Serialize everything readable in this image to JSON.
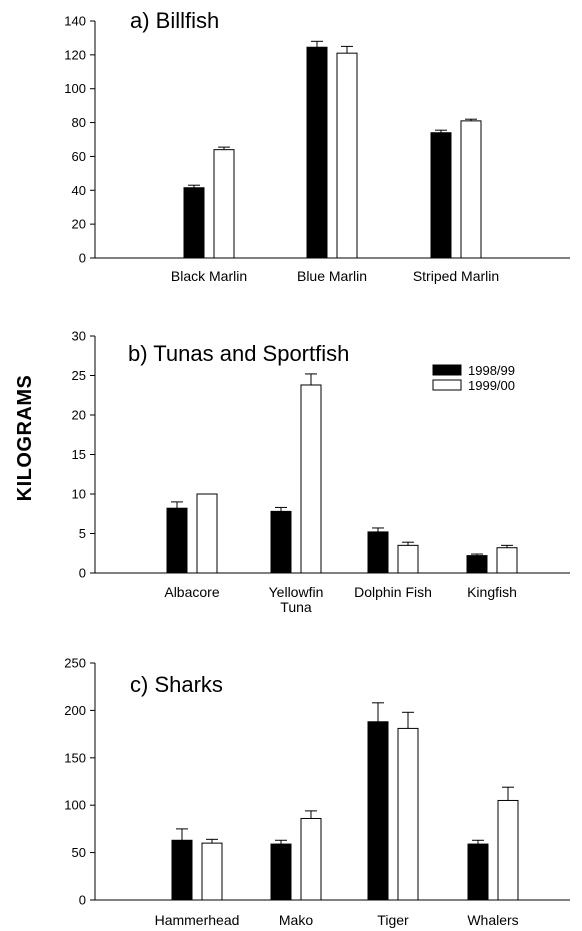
{
  "ylabel": "KILOGRAMS",
  "legend": {
    "position": "top-right of panel b",
    "entries": [
      {
        "label": "1998/99",
        "fill": "#000000"
      },
      {
        "label": "1999/00",
        "fill": "#ffffff"
      }
    ]
  },
  "chart_data": [
    {
      "type": "bar",
      "title": "a) Billfish",
      "categories": [
        [
          "Black Marlin"
        ],
        [
          "Blue Marlin"
        ],
        [
          "Striped Marlin"
        ]
      ],
      "ylim": [
        0,
        140
      ],
      "yticks": [
        0,
        20,
        40,
        60,
        80,
        100,
        120,
        140
      ],
      "series": [
        {
          "name": "1998/99",
          "values": [
            41.5,
            124.5,
            74
          ],
          "errors": [
            1.5,
            3.5,
            1.5
          ]
        },
        {
          "name": "1999/00",
          "values": [
            64,
            121,
            81
          ],
          "errors": [
            1.5,
            4,
            1
          ]
        }
      ]
    },
    {
      "type": "bar",
      "title": "b) Tunas and Sportfish",
      "categories": [
        [
          "Albacore"
        ],
        [
          "Yellowfin",
          "Tuna"
        ],
        [
          "Dolphin Fish"
        ],
        [
          "Kingfish"
        ]
      ],
      "ylim": [
        0,
        30
      ],
      "yticks": [
        0,
        5,
        10,
        15,
        20,
        25,
        30
      ],
      "series": [
        {
          "name": "1998/99",
          "values": [
            8.2,
            7.8,
            5.2,
            2.2
          ],
          "errors": [
            0.8,
            0.5,
            0.5,
            0.2
          ]
        },
        {
          "name": "1999/00",
          "values": [
            10,
            23.8,
            3.5,
            3.2
          ],
          "errors": [
            0,
            1.4,
            0.4,
            0.3
          ]
        }
      ]
    },
    {
      "type": "bar",
      "title": "c) Sharks",
      "categories": [
        [
          "Hammerhead"
        ],
        [
          "Mako"
        ],
        [
          "Tiger"
        ],
        [
          "Whalers"
        ]
      ],
      "ylim": [
        0,
        250
      ],
      "yticks": [
        0,
        50,
        100,
        150,
        200,
        250
      ],
      "series": [
        {
          "name": "1998/99",
          "values": [
            63,
            59,
            188,
            59
          ],
          "errors": [
            12,
            4,
            20,
            4
          ]
        },
        {
          "name": "1999/00",
          "values": [
            60,
            86,
            181,
            105
          ],
          "errors": [
            4,
            8,
            17,
            14
          ]
        }
      ]
    }
  ]
}
